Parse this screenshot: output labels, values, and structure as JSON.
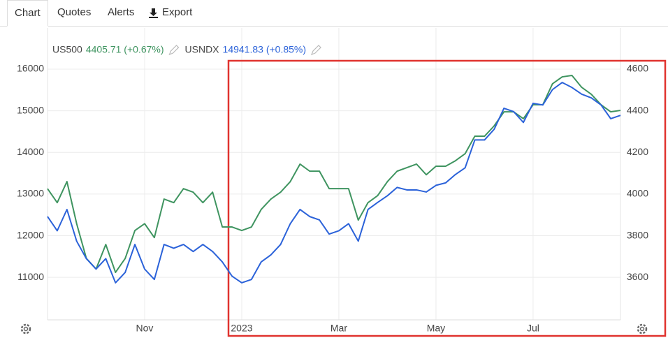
{
  "tabs": [
    "Chart",
    "Quotes",
    "Alerts",
    "Export"
  ],
  "chart_data": {
    "type": "line",
    "legend": [
      {
        "name": "US500",
        "quote": "4405.71 (+0.67%)"
      },
      {
        "name": "USNDX",
        "quote": "14941.83 (+0.85%)"
      }
    ],
    "series": [
      {
        "name": "US500",
        "color": "#3f9460",
        "axis": "y2",
        "values": [
          4026,
          3959,
          4060,
          3858,
          3691,
          3640,
          3758,
          3624,
          3691,
          3825,
          3858,
          3791,
          3976,
          3959,
          4026,
          4009,
          3959,
          4009,
          3842,
          3842,
          3825,
          3842,
          3926,
          3976,
          4009,
          4060,
          4144,
          4110,
          4110,
          4026,
          4026,
          4026,
          3875,
          3959,
          3993,
          4060,
          4110,
          4127,
          4144,
          4093,
          4134,
          4134,
          4160,
          4194,
          4278,
          4278,
          4328,
          4395,
          4395,
          4362,
          4429,
          4429,
          4530,
          4563,
          4570,
          4513,
          4479,
          4429,
          4395,
          4402
        ]
      },
      {
        "name": "USNDX",
        "color": "#2b62d9",
        "values": [
          12460,
          12120,
          12630,
          11870,
          11450,
          11200,
          11450,
          10870,
          11120,
          11790,
          11200,
          10950,
          11790,
          11700,
          11790,
          11620,
          11790,
          11620,
          11370,
          11030,
          10870,
          10950,
          11370,
          11540,
          11790,
          12290,
          12630,
          12460,
          12380,
          12040,
          12120,
          12290,
          11870,
          12630,
          12800,
          12960,
          13160,
          13100,
          13100,
          13050,
          13210,
          13270,
          13470,
          13630,
          14300,
          14300,
          14560,
          15060,
          14980,
          14720,
          15180,
          15140,
          15510,
          15680,
          15560,
          15400,
          15310,
          15140,
          14810,
          14890
        ]
      }
    ],
    "xlim": [
      0,
      59
    ],
    "xticks": [
      {
        "value": 10,
        "label": "Nov"
      },
      {
        "value": 20,
        "label": "2023"
      },
      {
        "value": 30,
        "label": "Mar"
      },
      {
        "value": 40,
        "label": "May"
      },
      {
        "value": 50,
        "label": "Jul"
      }
    ],
    "ylim": [
      9980,
      16990
    ],
    "yticks": [
      11000,
      12000,
      13000,
      14000,
      15000,
      16000
    ],
    "y2lim": [
      3396,
      4798
    ],
    "y2ticks": [
      3600,
      3800,
      4000,
      4200,
      4400,
      4600
    ],
    "grid": true
  }
}
